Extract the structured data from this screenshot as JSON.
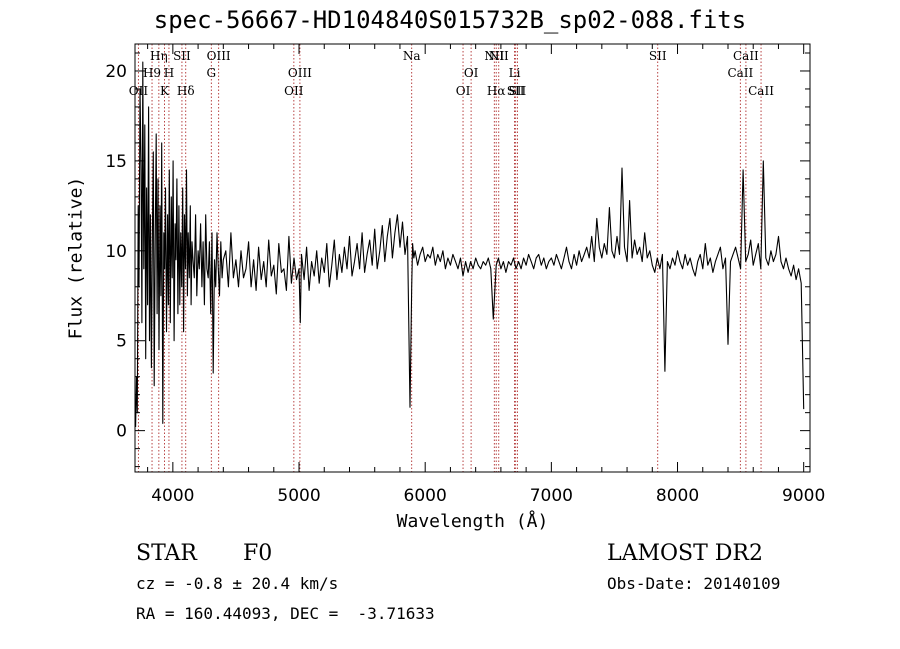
{
  "figure": {
    "title": "spec-56667-HD104840S015732B_sp02-088.fits",
    "object_class": "STAR",
    "subclass": "F0",
    "survey": "LAMOST DR2",
    "redshift_text": "cz = -0.8 ± 20.4 km/s",
    "obs_date_text": "Obs-Date: 20140109",
    "coords_text": "RA = 160.44093, DEC =  -3.71633"
  },
  "colors": {
    "spectrum": "#000000",
    "line_markers": "#b03030"
  },
  "chart_data": {
    "type": "line",
    "title": "spec-56667-HD104840S015732B_sp02-088.fits",
    "xlabel": "Wavelength (Å)",
    "ylabel": "Flux (relative)",
    "xlim": [
      3700,
      9050
    ],
    "ylim": [
      -2.3,
      21.5
    ],
    "xticks": [
      4000,
      5000,
      6000,
      7000,
      8000,
      9000
    ],
    "yticks": [
      0,
      5,
      10,
      15,
      20
    ],
    "grid": false,
    "legend": "none",
    "series": [
      {
        "x": [
          3705,
          3712,
          3718,
          3725,
          3732,
          3740,
          3748,
          3755,
          3762,
          3770,
          3778,
          3785,
          3792,
          3800,
          3808,
          3815,
          3822,
          3830,
          3838,
          3845,
          3852,
          3860,
          3868,
          3875,
          3882,
          3890,
          3898,
          3905,
          3912,
          3920,
          3928,
          3935,
          3942,
          3950,
          3958,
          3965,
          3972,
          3980,
          3988,
          3995,
          4002,
          4010,
          4018,
          4025,
          4032,
          4040,
          4048,
          4055,
          4062,
          4070,
          4078,
          4085,
          4092,
          4100,
          4108,
          4115,
          4122,
          4130,
          4138,
          4145,
          4152,
          4160,
          4170,
          4180,
          4190,
          4200,
          4210,
          4220,
          4230,
          4240,
          4250,
          4260,
          4270,
          4280,
          4290,
          4300,
          4310,
          4320,
          4330,
          4340,
          4350,
          4360,
          4370,
          4380,
          4390,
          4400,
          4420,
          4440,
          4460,
          4480,
          4500,
          4520,
          4540,
          4560,
          4580,
          4600,
          4620,
          4640,
          4660,
          4680,
          4700,
          4720,
          4740,
          4760,
          4780,
          4800,
          4820,
          4840,
          4860,
          4880,
          4900,
          4920,
          4940,
          4960,
          4980,
          5000,
          5010,
          5020,
          5040,
          5060,
          5080,
          5100,
          5120,
          5140,
          5160,
          5180,
          5200,
          5220,
          5240,
          5260,
          5280,
          5300,
          5320,
          5340,
          5360,
          5380,
          5400,
          5420,
          5440,
          5460,
          5480,
          5500,
          5520,
          5540,
          5560,
          5580,
          5600,
          5620,
          5640,
          5660,
          5680,
          5700,
          5720,
          5740,
          5760,
          5780,
          5800,
          5820,
          5840,
          5860,
          5880,
          5893,
          5900,
          5910,
          5920,
          5940,
          5960,
          5980,
          6000,
          6020,
          6040,
          6060,
          6080,
          6100,
          6120,
          6140,
          6160,
          6180,
          6200,
          6220,
          6240,
          6260,
          6280,
          6300,
          6320,
          6340,
          6360,
          6380,
          6400,
          6420,
          6440,
          6460,
          6480,
          6500,
          6520,
          6540,
          6563,
          6580,
          6600,
          6620,
          6640,
          6660,
          6680,
          6700,
          6720,
          6740,
          6760,
          6780,
          6800,
          6820,
          6840,
          6860,
          6880,
          6900,
          6920,
          6940,
          6960,
          6980,
          7000,
          7020,
          7040,
          7060,
          7080,
          7100,
          7120,
          7140,
          7160,
          7180,
          7200,
          7220,
          7240,
          7260,
          7280,
          7300,
          7320,
          7340,
          7360,
          7380,
          7400,
          7420,
          7440,
          7460,
          7480,
          7500,
          7520,
          7540,
          7560,
          7580,
          7600,
          7620,
          7640,
          7660,
          7680,
          7700,
          7720,
          7740,
          7760,
          7780,
          7800,
          7820,
          7840,
          7860,
          7880,
          7900,
          7920,
          7940,
          7960,
          7980,
          8000,
          8020,
          8040,
          8060,
          8080,
          8100,
          8120,
          8140,
          8160,
          8180,
          8200,
          8220,
          8240,
          8260,
          8280,
          8300,
          8320,
          8340,
          8360,
          8380,
          8400,
          8420,
          8440,
          8460,
          8480,
          8500,
          8520,
          8540,
          8560,
          8580,
          8600,
          8620,
          8640,
          8660,
          8680,
          8700,
          8720,
          8740,
          8760,
          8780,
          8800,
          8820,
          8840,
          8860,
          8880,
          8900,
          8920,
          8940,
          8960,
          8980,
          9000
        ],
        "y": [
          0.2,
          3.0,
          1.0,
          12.5,
          8.0,
          19.0,
          14.5,
          6.0,
          20.5,
          9.0,
          17.0,
          4.0,
          13.5,
          7.0,
          18.0,
          5.0,
          12.0,
          3.5,
          11.0,
          15.5,
          2.5,
          10.5,
          16.5,
          6.5,
          14.0,
          4.5,
          12.5,
          7.5,
          16.0,
          0.4,
          11.0,
          9.0,
          13.5,
          5.5,
          12.0,
          7.0,
          14.5,
          6.0,
          13.0,
          8.5,
          15.0,
          5.0,
          11.5,
          9.5,
          14.0,
          6.5,
          12.5,
          7.0,
          11.0,
          8.0,
          13.5,
          5.5,
          12.0,
          9.0,
          14.5,
          7.5,
          11.0,
          8.5,
          12.5,
          7.0,
          10.5,
          9.5,
          8.5,
          12.0,
          7.5,
          10.0,
          9.0,
          11.5,
          8.0,
          10.5,
          7.0,
          12.0,
          9.0,
          8.5,
          10.5,
          6.5,
          11.0,
          3.2,
          9.5,
          8.0,
          11.0,
          9.0,
          7.5,
          10.5,
          8.5,
          9.5,
          10.0,
          8.0,
          11.0,
          8.5,
          9.5,
          8.0,
          10.0,
          8.5,
          9.0,
          10.5,
          8.0,
          9.5,
          7.8,
          10.2,
          8.4,
          9.4,
          8.0,
          10.6,
          8.6,
          9.2,
          7.6,
          10.4,
          8.8,
          9.0,
          7.8,
          10.8,
          8.2,
          9.6,
          8.4,
          9.0,
          6.0,
          9.8,
          8.4,
          10.2,
          7.8,
          9.4,
          8.6,
          10.0,
          8.2,
          9.6,
          8.8,
          10.4,
          8.0,
          9.2,
          10.6,
          8.4,
          9.8,
          8.8,
          10.2,
          9.0,
          10.8,
          8.6,
          9.4,
          10.4,
          9.0,
          11.0,
          8.8,
          9.8,
          10.6,
          9.2,
          11.2,
          9.0,
          10.0,
          11.4,
          9.4,
          10.8,
          11.8,
          9.6,
          11.0,
          12.0,
          10.2,
          11.6,
          9.8,
          10.8,
          1.3,
          8.0,
          10.4,
          9.6,
          10.0,
          9.2,
          9.8,
          10.2,
          9.4,
          9.8,
          9.6,
          10.2,
          9.2,
          9.8,
          9.4,
          10.0,
          9.0,
          9.6,
          9.2,
          9.8,
          9.4,
          9.0,
          9.6,
          8.6,
          9.4,
          8.8,
          9.4,
          9.0,
          9.6,
          9.2,
          9.0,
          9.4,
          9.2,
          9.6,
          9.0,
          6.2,
          9.2,
          9.6,
          9.0,
          9.4,
          8.8,
          9.4,
          9.2,
          9.6,
          9.0,
          9.4,
          9.0,
          9.6,
          9.2,
          9.8,
          9.4,
          9.0,
          9.6,
          9.8,
          9.2,
          9.6,
          9.0,
          9.4,
          9.6,
          9.2,
          9.8,
          9.4,
          9.0,
          9.6,
          10.2,
          9.4,
          9.0,
          9.8,
          9.2,
          10.0,
          9.4,
          9.8,
          10.2,
          9.6,
          10.8,
          9.4,
          11.8,
          10.2,
          9.6,
          10.4,
          9.8,
          12.4,
          10.0,
          9.6,
          10.8,
          9.8,
          14.6,
          10.2,
          9.4,
          12.8,
          9.6,
          10.6,
          9.8,
          10.2,
          9.4,
          11.0,
          9.6,
          10.0,
          9.2,
          8.8,
          9.6,
          9.0,
          9.8,
          3.3,
          9.4,
          9.0,
          9.6,
          9.2,
          10.0,
          9.4,
          9.0,
          9.8,
          9.2,
          9.6,
          9.0,
          8.6,
          9.4,
          9.8,
          9.0,
          10.4,
          9.2,
          9.6,
          8.8,
          9.4,
          9.8,
          10.2,
          9.0,
          9.6,
          4.8,
          9.4,
          9.8,
          10.2,
          9.6,
          9.0,
          14.5,
          9.4,
          9.8,
          10.6,
          9.2,
          9.8,
          10.4,
          9.0,
          15.0,
          9.6,
          9.2,
          10.0,
          9.4,
          9.8,
          10.8,
          9.4,
          9.0,
          9.6,
          9.0,
          8.6,
          9.2,
          8.4,
          9.0,
          8.2,
          1.2
        ]
      }
    ],
    "line_markers": [
      {
        "label": "OII",
        "wavelength": 3727,
        "row": 2
      },
      {
        "label": "H9",
        "wavelength": 3835,
        "row": 1
      },
      {
        "label": "Hη",
        "wavelength": 3889,
        "row": 0
      },
      {
        "label": "K",
        "wavelength": 3934,
        "row": 2
      },
      {
        "label": "H",
        "wavelength": 3969,
        "row": 1
      },
      {
        "label": "SII",
        "wavelength": 4072,
        "row": 0
      },
      {
        "label": "Hδ",
        "wavelength": 4102,
        "row": 2
      },
      {
        "label": "G",
        "wavelength": 4305,
        "row": 1
      },
      {
        "label": "OIII",
        "wavelength": 4363,
        "row": 0
      },
      {
        "label": "OII",
        "wavelength": 4959,
        "row": 2
      },
      {
        "label": "OIII",
        "wavelength": 5007,
        "row": 1
      },
      {
        "label": "Na",
        "wavelength": 5893,
        "row": 0
      },
      {
        "label": "OI",
        "wavelength": 6300,
        "row": 2
      },
      {
        "label": "OI",
        "wavelength": 6364,
        "row": 1
      },
      {
        "label": "NII",
        "wavelength": 6548,
        "row": 0
      },
      {
        "label": "Hα",
        "wavelength": 6563,
        "row": 2
      },
      {
        "label": "NII",
        "wavelength": 6583,
        "row": 0
      },
      {
        "label": "Li",
        "wavelength": 6708,
        "row": 1
      },
      {
        "label": "SII",
        "wavelength": 6717,
        "row": 2
      },
      {
        "label": "SII",
        "wavelength": 6731,
        "row": 2
      },
      {
        "label": "SII",
        "wavelength": 7843,
        "row": 0
      },
      {
        "label": "CaII",
        "wavelength": 8498,
        "row": 1
      },
      {
        "label": "CaII",
        "wavelength": 8542,
        "row": 0
      },
      {
        "label": "CaII",
        "wavelength": 8662,
        "row": 2
      }
    ]
  }
}
